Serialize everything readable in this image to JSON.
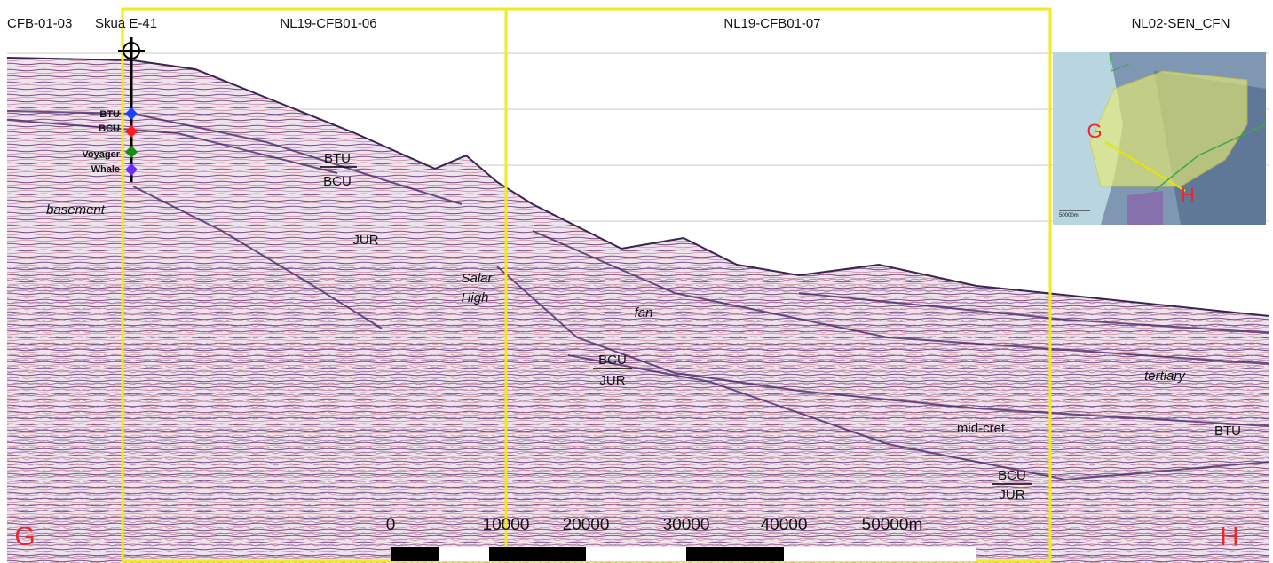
{
  "header": {
    "lines": [
      "CFB-01-03",
      "NL19-CFB01-06",
      "NL19-CFB01-07",
      "NL02-SEN_CFN"
    ],
    "well": "Skua E-41"
  },
  "well_markers": [
    "BTU",
    "BCU",
    "Voyager",
    "Whale"
  ],
  "interpretation": [
    "BTU",
    "BCU",
    "basement",
    "JUR",
    "Salar",
    "High",
    "fan",
    "BCU",
    "JUR",
    "tertiary",
    "mid-cret",
    "BTU",
    "BCU",
    "JUR"
  ],
  "scale_bar": [
    "0",
    "10000",
    "20000",
    "30000",
    "40000",
    "50000m"
  ],
  "corners": [
    "G",
    "H"
  ],
  "inset_map": {
    "labels": [
      "G",
      "H"
    ],
    "scale": "50000m"
  }
}
